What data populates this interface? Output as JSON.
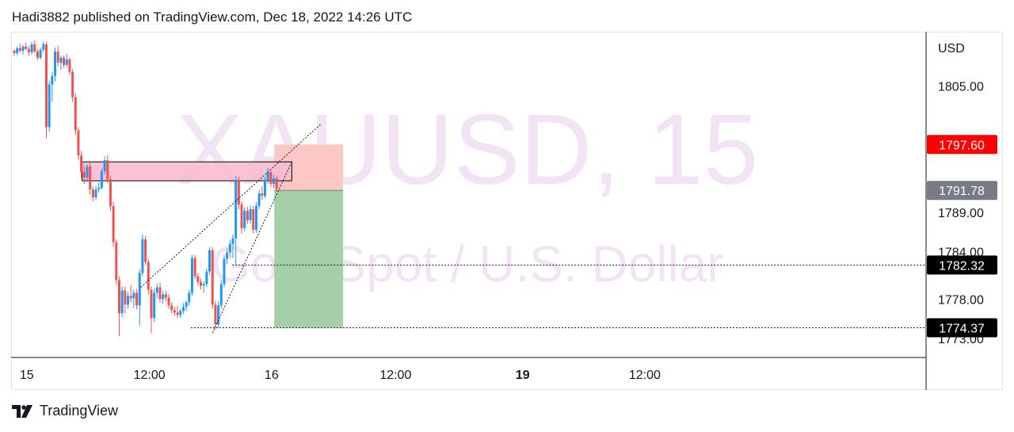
{
  "header": {
    "published_text": "Hadi3882 published on TradingView.com, Dec 18, 2022 14:26 UTC"
  },
  "footer": {
    "brand": "TradingView",
    "logo_icon": "tradingview-logo-icon"
  },
  "watermark": {
    "symbol": "XAUUSD, 15",
    "description": "Gold Spot / U.S. Dollar"
  },
  "colors": {
    "up": "#2196f3",
    "down": "#ef5350",
    "zone": "#f8bbd0",
    "stop": "#fdc7c6",
    "target": "#a5d0a7",
    "price_marker_red": "#ff0000",
    "price_marker_gray": "#787b86",
    "price_marker_black": "#000000"
  },
  "chart_data": {
    "type": "candlestick",
    "symbol": "XAUUSD",
    "interval": "15",
    "currency": "USD",
    "y_axis": {
      "ticks": [
        "1805.00",
        "1789.00",
        "1784.00",
        "1778.00",
        "1773.00"
      ],
      "range": [
        1770.6,
        1811.9
      ]
    },
    "x_axis": {
      "ticks": [
        "15",
        "12:00",
        "16",
        "12:00",
        "19",
        "12:00"
      ]
    },
    "price_markers": [
      {
        "label": "1797.60",
        "value": 1797.6,
        "style": "red"
      },
      {
        "label": "1791.78",
        "value": 1791.78,
        "style": "gray"
      },
      {
        "label": "1782.32",
        "value": 1782.32,
        "style": "black"
      },
      {
        "label": "1774.37",
        "value": 1774.37,
        "style": "black"
      }
    ],
    "zone": {
      "from_time": 5.82,
      "to_time": 23.8,
      "top": 1795.4,
      "bottom": 1793.0
    },
    "short_position": {
      "from_time": 22.3,
      "to_time": 28.2,
      "entry": 1791.78,
      "stop": 1797.6,
      "target": 1774.37
    },
    "trendlines": [
      {
        "t1": 10.85,
        "p1": 1779.5,
        "t2": 26.3,
        "p2": 1800.2
      },
      {
        "t1": 17.0,
        "p1": 1773.7,
        "t2": 23.8,
        "p2": 1795.4
      }
    ],
    "hlines": [
      {
        "from_time": 18.7,
        "value": 1782.32
      },
      {
        "from_time": 15.15,
        "value": 1774.37
      }
    ],
    "candles": [
      [
        0.0,
        1809.5,
        1809.6,
        1808.8,
        1809.2
      ],
      [
        0.25,
        1809.2,
        1810.0,
        1808.9,
        1809.8
      ],
      [
        0.5,
        1809.8,
        1810.4,
        1809.3,
        1809.5
      ],
      [
        0.75,
        1809.5,
        1810.2,
        1809.0,
        1810.0
      ],
      [
        1.0,
        1810.0,
        1810.5,
        1809.6,
        1809.7
      ],
      [
        1.25,
        1809.7,
        1810.1,
        1808.9,
        1809.3
      ],
      [
        1.5,
        1809.3,
        1810.6,
        1809.0,
        1810.3
      ],
      [
        1.75,
        1810.3,
        1810.8,
        1809.2,
        1809.4
      ],
      [
        2.0,
        1809.4,
        1809.7,
        1808.3,
        1808.6
      ],
      [
        2.25,
        1808.6,
        1809.9,
        1808.4,
        1809.6
      ],
      [
        2.5,
        1809.6,
        1810.7,
        1809.3,
        1810.3
      ],
      [
        2.75,
        1810.3,
        1810.6,
        1798.4,
        1799.8
      ],
      [
        3.0,
        1799.8,
        1805.7,
        1799.2,
        1805.2
      ],
      [
        3.25,
        1805.2,
        1806.8,
        1803.0,
        1806.3
      ],
      [
        3.5,
        1806.3,
        1809.9,
        1805.6,
        1809.4
      ],
      [
        3.75,
        1809.4,
        1810.1,
        1807.5,
        1808.0
      ],
      [
        4.0,
        1808.0,
        1808.9,
        1807.1,
        1808.6
      ],
      [
        4.25,
        1808.6,
        1808.9,
        1807.3,
        1807.7
      ],
      [
        4.5,
        1807.7,
        1809.1,
        1807.4,
        1808.4
      ],
      [
        4.75,
        1808.4,
        1808.6,
        1806.4,
        1806.8
      ],
      [
        5.0,
        1806.8,
        1807.2,
        1803.0,
        1803.6
      ],
      [
        5.25,
        1803.6,
        1804.1,
        1798.8,
        1799.4
      ],
      [
        5.5,
        1799.4,
        1799.8,
        1795.6,
        1796.2
      ],
      [
        5.75,
        1796.2,
        1796.8,
        1793.4,
        1794.1
      ],
      [
        6.0,
        1794.1,
        1794.9,
        1792.6,
        1793.4
      ],
      [
        6.25,
        1793.4,
        1795.1,
        1793.1,
        1794.8
      ],
      [
        6.5,
        1794.8,
        1795.3,
        1791.2,
        1791.9
      ],
      [
        6.75,
        1791.9,
        1792.3,
        1790.4,
        1790.9
      ],
      [
        7.0,
        1790.9,
        1792.4,
        1790.6,
        1791.9
      ],
      [
        7.25,
        1791.9,
        1792.8,
        1791.5,
        1792.1
      ],
      [
        7.5,
        1792.1,
        1794.6,
        1791.9,
        1794.2
      ],
      [
        7.75,
        1794.2,
        1796.1,
        1793.8,
        1795.6
      ],
      [
        8.0,
        1795.6,
        1796.3,
        1792.7,
        1793.2
      ],
      [
        8.25,
        1793.2,
        1793.6,
        1789.2,
        1789.8
      ],
      [
        8.5,
        1789.8,
        1790.3,
        1784.6,
        1785.2
      ],
      [
        8.75,
        1785.2,
        1785.6,
        1779.8,
        1780.4
      ],
      [
        9.0,
        1780.4,
        1780.9,
        1773.3,
        1776.2
      ],
      [
        9.25,
        1776.2,
        1779.6,
        1775.7,
        1779.1
      ],
      [
        9.5,
        1779.1,
        1779.6,
        1776.2,
        1777.3
      ],
      [
        9.75,
        1777.3,
        1778.9,
        1776.8,
        1778.4
      ],
      [
        10.0,
        1778.4,
        1779.8,
        1777.6,
        1778.1
      ],
      [
        10.25,
        1778.1,
        1779.2,
        1776.9,
        1778.8
      ],
      [
        10.5,
        1778.8,
        1779.3,
        1776.7,
        1777.2
      ],
      [
        10.75,
        1777.2,
        1781.8,
        1774.6,
        1781.3
      ],
      [
        11.0,
        1781.3,
        1786.2,
        1780.9,
        1785.6
      ],
      [
        11.25,
        1785.6,
        1786.0,
        1782.3,
        1782.7
      ],
      [
        11.5,
        1782.7,
        1783.1,
        1778.6,
        1779.2
      ],
      [
        11.75,
        1779.2,
        1779.6,
        1773.7,
        1775.6
      ],
      [
        12.0,
        1775.6,
        1779.3,
        1775.1,
        1778.8
      ],
      [
        12.25,
        1778.8,
        1780.0,
        1778.1,
        1779.5
      ],
      [
        12.5,
        1779.5,
        1780.1,
        1777.6,
        1778.0
      ],
      [
        12.75,
        1778.0,
        1779.1,
        1777.4,
        1778.6
      ],
      [
        13.0,
        1778.6,
        1779.1,
        1777.7,
        1778.2
      ],
      [
        13.25,
        1778.2,
        1778.6,
        1776.8,
        1777.2
      ],
      [
        13.5,
        1777.2,
        1777.6,
        1776.2,
        1776.6
      ],
      [
        13.75,
        1776.6,
        1777.0,
        1775.9,
        1776.3
      ],
      [
        14.0,
        1776.3,
        1777.1,
        1775.6,
        1776.0
      ],
      [
        14.25,
        1776.0,
        1776.8,
        1775.6,
        1776.5
      ],
      [
        14.5,
        1776.5,
        1777.5,
        1776.1,
        1777.0
      ],
      [
        14.75,
        1777.0,
        1777.8,
        1776.5,
        1777.6
      ],
      [
        15.0,
        1777.6,
        1779.2,
        1777.2,
        1778.8
      ],
      [
        15.25,
        1778.8,
        1783.6,
        1778.4,
        1783.2
      ],
      [
        15.5,
        1783.2,
        1783.6,
        1780.5,
        1780.9
      ],
      [
        15.75,
        1780.9,
        1781.3,
        1779.7,
        1780.2
      ],
      [
        16.0,
        1780.2,
        1780.6,
        1779.2,
        1779.7
      ],
      [
        16.25,
        1779.7,
        1780.3,
        1778.8,
        1779.9
      ],
      [
        16.5,
        1779.9,
        1781.9,
        1779.5,
        1781.5
      ],
      [
        16.75,
        1781.5,
        1784.6,
        1781.1,
        1784.2
      ],
      [
        17.0,
        1784.2,
        1784.6,
        1776.8,
        1777.3
      ],
      [
        17.25,
        1777.3,
        1777.8,
        1774.2,
        1774.8
      ],
      [
        17.5,
        1774.8,
        1777.7,
        1774.4,
        1777.2
      ],
      [
        17.75,
        1777.2,
        1780.4,
        1776.8,
        1779.9
      ],
      [
        18.0,
        1779.9,
        1783.6,
        1779.5,
        1783.1
      ],
      [
        18.25,
        1783.1,
        1784.4,
        1782.4,
        1783.9
      ],
      [
        18.5,
        1783.9,
        1785.5,
        1783.2,
        1785.0
      ],
      [
        18.75,
        1785.0,
        1786.2,
        1783.2,
        1785.7
      ],
      [
        19.0,
        1785.7,
        1793.6,
        1782.4,
        1793.1
      ],
      [
        19.25,
        1793.1,
        1793.5,
        1789.4,
        1790.0
      ],
      [
        19.5,
        1790.0,
        1790.4,
        1786.3,
        1787.0
      ],
      [
        19.75,
        1787.0,
        1789.6,
        1786.6,
        1789.2
      ],
      [
        20.0,
        1789.2,
        1789.7,
        1787.5,
        1788.0
      ],
      [
        20.25,
        1788.0,
        1789.8,
        1787.6,
        1789.4
      ],
      [
        20.5,
        1789.4,
        1789.8,
        1786.3,
        1786.8
      ],
      [
        20.75,
        1786.8,
        1790.3,
        1786.4,
        1789.8
      ],
      [
        21.0,
        1789.8,
        1791.8,
        1789.4,
        1791.4
      ],
      [
        21.25,
        1791.4,
        1792.3,
        1790.6,
        1791.1
      ],
      [
        21.5,
        1791.1,
        1793.5,
        1790.8,
        1793.1
      ],
      [
        21.75,
        1793.1,
        1794.6,
        1792.6,
        1794.1
      ],
      [
        22.0,
        1794.1,
        1794.3,
        1792.2,
        1792.6
      ],
      [
        22.25,
        1792.6,
        1793.8,
        1792.1,
        1793.3
      ],
      [
        22.5,
        1793.3,
        1793.6,
        1791.6,
        1792.0
      ]
    ]
  }
}
